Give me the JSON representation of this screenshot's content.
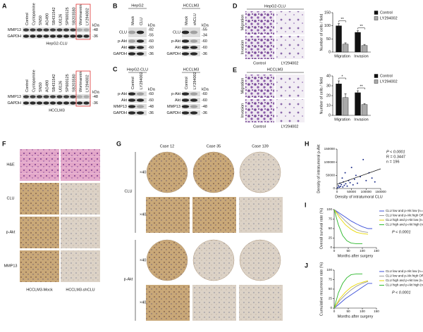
{
  "letters": [
    "A",
    "B",
    "C",
    "D",
    "E",
    "F",
    "G",
    "H",
    "I",
    "J"
  ],
  "a": {
    "lanes": [
      "Control",
      "Cyclopamine",
      "SN50",
      "AG490",
      "SB431542",
      "U0126",
      "SP600125",
      "SB203580",
      "Wortmannin",
      "LY294002"
    ],
    "kda": "kDa",
    "top": {
      "rows": [
        "MMP13",
        "GAPDH"
      ],
      "markers": [
        "-48",
        "-36"
      ],
      "caption": "HepG2-CLU"
    },
    "bottom": {
      "rows": [
        "MMP13",
        "GAPDH"
      ],
      "markers": [
        "-48",
        "-36"
      ],
      "caption": "HCCLM3"
    }
  },
  "b": {
    "kda": "kDa",
    "left": {
      "cell": "HepG2",
      "lanes": [
        "Mock",
        "CLU"
      ],
      "rows": [
        "CLU",
        "p-Akt",
        "Akt",
        "GAPDH"
      ],
      "markers": [
        "-82",
        "-55",
        "-60",
        "-60",
        "-36"
      ]
    },
    "right": {
      "cell": "HCCLM3",
      "lanes": [
        "Mock",
        "shCLU"
      ],
      "rows": [
        "CLU",
        "p-Akt",
        "Akt",
        "GAPDH"
      ],
      "markers": [
        "-55",
        "-34",
        "-60",
        "-60",
        "-36"
      ]
    }
  },
  "c": {
    "kda": "kDa",
    "left": {
      "cell": "HepG2-CLU",
      "lanes": [
        "Control",
        "LY294002"
      ],
      "rows": [
        "p-Akt",
        "Akt",
        "MMP13",
        "GAPDH"
      ],
      "markers": [
        "-60",
        "-60",
        "-48",
        "-36"
      ]
    },
    "right": {
      "cell": "HCCLM3",
      "lanes": [
        "Control",
        "LY294002"
      ],
      "rows": [
        "p-Akt",
        "Akt",
        "MMP13",
        "GAPDH"
      ],
      "markers": [
        "-60",
        "-60",
        "-48",
        "-36"
      ]
    }
  },
  "d": {
    "cell": "HepG2-CLU",
    "rows": [
      "Migration",
      "Invasion"
    ],
    "cols": [
      "Control",
      "LY294002"
    ],
    "chart": {
      "type": "bar",
      "ylabel": "Number of cells / field",
      "categories": [
        "Migration",
        "Invasion"
      ],
      "series": [
        {
          "name": "Control",
          "color": "#111111",
          "values": [
            100,
            75
          ],
          "errors": [
            8,
            6
          ]
        },
        {
          "name": "LY294002",
          "color": "#aaaaaa",
          "values": [
            30,
            25
          ],
          "errors": [
            5,
            4
          ]
        }
      ],
      "ylim": [
        0,
        150
      ],
      "yticks": [
        0,
        50,
        100,
        150
      ],
      "significance": [
        "**",
        "**"
      ]
    }
  },
  "e": {
    "cell": "HCCLM3",
    "rows": [
      "Migration",
      "Invasion"
    ],
    "cols": [
      "Control",
      "LY294002"
    ],
    "chart": {
      "type": "bar",
      "ylabel": "Number of cells / field",
      "categories": [
        "Migration",
        "Invasion"
      ],
      "series": [
        {
          "name": "Control",
          "color": "#111111",
          "values": [
            32,
            23
          ],
          "errors": [
            3,
            2
          ]
        },
        {
          "name": "LY294002",
          "color": "#aaaaaa",
          "values": [
            18,
            11
          ],
          "errors": [
            4,
            1
          ]
        }
      ],
      "ylim": [
        0,
        40
      ],
      "yticks": [
        0,
        10,
        20,
        30,
        40
      ],
      "significance": [
        "*",
        "**"
      ]
    }
  },
  "f": {
    "rows": [
      "H&E",
      "CLU",
      "p-Akt",
      "MMP13"
    ],
    "cols": [
      "HCCLM3-Mock",
      "HCCLM3-shCLU"
    ]
  },
  "g": {
    "cols": [
      "Case 12",
      "Case 35",
      "Case 139"
    ],
    "markers": [
      "CLU",
      "p-Akt"
    ],
    "magnifications": [
      "×40",
      "×400"
    ]
  },
  "h": {
    "type": "scatter",
    "xlabel": "Density of intratumoral CLU",
    "ylabel": "Density of intratumoral p-Akt",
    "annotations": [
      "P < 0.0001",
      "R = 0.3447",
      "n = 196"
    ],
    "x": [
      2000,
      5000,
      8000,
      10000,
      12000,
      15000,
      18000,
      20000,
      22000,
      25000,
      28000,
      30000,
      35000,
      40000,
      45000,
      50000,
      55000,
      60000,
      65000,
      70000,
      80000,
      90000,
      100000,
      110000,
      120000,
      130000
    ],
    "y": [
      3000,
      10000,
      5000,
      20000,
      8000,
      15000,
      40000,
      6000,
      25000,
      12000,
      60000,
      18000,
      9000,
      30000,
      22000,
      80000,
      14000,
      35000,
      50000,
      20000,
      45000,
      110000,
      30000,
      60000,
      40000,
      25000
    ],
    "color": "#1f2f8a",
    "xlim": [
      0,
      150000
    ],
    "xticks": [
      0,
      50000,
      100000,
      150000
    ],
    "ylim": [
      0,
      150000
    ],
    "yticks": [
      0,
      50000,
      100000,
      150000
    ]
  },
  "i": {
    "type": "line",
    "xlabel": "Months after surgery",
    "ylabel": "Overall survival rate (%)",
    "annotation": "P < 0.0001",
    "series": [
      {
        "name": "CLU low and p-Akt low (n=48)",
        "color": "#3b4fd8",
        "x": [
          0,
          20,
          40,
          60,
          80,
          100,
          120,
          135
        ],
        "values": [
          100,
          90,
          80,
          70,
          62,
          55,
          50,
          50
        ]
      },
      {
        "name": "CLU low and p-Akt high OR",
        "color": "#999999",
        "x": [
          0,
          20,
          40,
          60,
          80,
          100,
          120
        ],
        "values": [
          100,
          85,
          70,
          57,
          47,
          42,
          40
        ]
      },
      {
        "name": "CLU high and p-Akt low (n=91)",
        "color": "#e8d800",
        "x": [
          0,
          20,
          40,
          60,
          80,
          100,
          120
        ],
        "values": [
          100,
          78,
          60,
          48,
          40,
          37,
          35
        ]
      },
      {
        "name": "CLU high and p-Akt high (n=59)",
        "color": "#2db82d",
        "x": [
          0,
          15,
          30,
          45,
          60,
          80,
          100
        ],
        "values": [
          100,
          60,
          32,
          18,
          12,
          10,
          10
        ]
      }
    ],
    "xlim": [
      0,
      150
    ],
    "xticks": [
      0,
      50,
      100,
      150
    ],
    "ylim": [
      0,
      100
    ],
    "yticks": [
      0,
      25,
      50,
      75,
      100
    ]
  },
  "j": {
    "type": "line",
    "xlabel": "Months after surgery",
    "ylabel": "Cumulative recurrence rate (%)",
    "annotation": "P < 0.0001",
    "series": [
      {
        "name": "CLU low and p-Akt low (n=48)",
        "color": "#3b4fd8",
        "x": [
          0,
          20,
          40,
          60,
          80,
          100,
          120,
          135
        ],
        "values": [
          0,
          12,
          25,
          35,
          45,
          55,
          65,
          65
        ]
      },
      {
        "name": "CLU low and p-Akt high OR",
        "color": "#999999",
        "x": [
          0,
          20,
          40,
          60,
          80,
          100,
          120
        ],
        "values": [
          0,
          20,
          35,
          48,
          58,
          65,
          70
        ]
      },
      {
        "name": "CLU high and p-Akt low (n=91)",
        "color": "#e8d800",
        "x": [
          0,
          20,
          40,
          60,
          80,
          100,
          120
        ],
        "values": [
          0,
          25,
          42,
          55,
          63,
          68,
          72
        ]
      },
      {
        "name": "CLU high and p-Akt high (n=59)",
        "color": "#2db82d",
        "x": [
          0,
          15,
          30,
          45,
          60,
          80,
          100
        ],
        "values": [
          0,
          40,
          65,
          80,
          88,
          90,
          90
        ]
      }
    ],
    "xlim": [
      0,
      150
    ],
    "xticks": [
      0,
      50,
      100,
      150
    ],
    "ylim": [
      0,
      100
    ],
    "yticks": [
      0,
      25,
      50,
      75,
      100
    ]
  }
}
